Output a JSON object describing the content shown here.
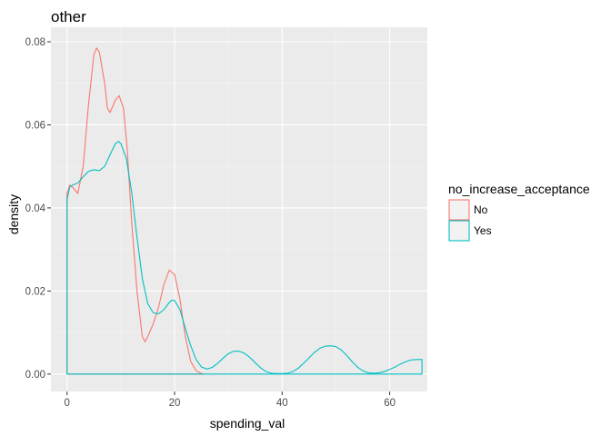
{
  "chart_data": {
    "type": "line",
    "subtype": "density",
    "title": "other",
    "xlabel": "spending_val",
    "ylabel": "density",
    "xlim": [
      -3,
      67
    ],
    "ylim": [
      -0.0042,
      0.0835
    ],
    "x_ticks": [
      0,
      20,
      40,
      60
    ],
    "x_tick_labels": [
      "0",
      "20",
      "40",
      "60"
    ],
    "y_ticks": [
      0,
      0.02,
      0.04,
      0.06,
      0.08
    ],
    "y_tick_labels": [
      "0.00",
      "0.02",
      "0.04",
      "0.06",
      "0.08"
    ],
    "grid": true,
    "background": "#ebebeb",
    "legend": {
      "title": "no_increase_acceptance",
      "position": "right",
      "entries": [
        "No",
        "Yes"
      ]
    },
    "series": [
      {
        "name": "No",
        "color": "#f8766d",
        "closed": true,
        "x": [
          0,
          0.5,
          1,
          2,
          3,
          4,
          5,
          5.5,
          6,
          7,
          7.5,
          8,
          9,
          9.7,
          10.5,
          11.2,
          12,
          13,
          14,
          14.5,
          15,
          16,
          17,
          18,
          19,
          20,
          21,
          22,
          23,
          24,
          25,
          25.5
        ],
        "y": [
          0.0435,
          0.0455,
          0.045,
          0.0435,
          0.05,
          0.065,
          0.077,
          0.0785,
          0.0775,
          0.07,
          0.064,
          0.063,
          0.066,
          0.067,
          0.064,
          0.054,
          0.037,
          0.02,
          0.009,
          0.0078,
          0.009,
          0.012,
          0.016,
          0.0215,
          0.025,
          0.024,
          0.018,
          0.009,
          0.003,
          0.0008,
          0.0001,
          0
        ]
      },
      {
        "name": "Yes",
        "color": "#00bfc4",
        "closed": true,
        "x": [
          0,
          0.5,
          1,
          2,
          3,
          4,
          5,
          6,
          7,
          8,
          9,
          9.6,
          10,
          11,
          12,
          13,
          14,
          15,
          16,
          17,
          18,
          19,
          19.5,
          20,
          21,
          22,
          23,
          24,
          25,
          26,
          27,
          28,
          29,
          30,
          31,
          32,
          33,
          34,
          35,
          36,
          37,
          38,
          39,
          40,
          41,
          42,
          43,
          44,
          45,
          46,
          47,
          48,
          49,
          50,
          51,
          52,
          53,
          54,
          55,
          56,
          57,
          58,
          59,
          60,
          61,
          62,
          63,
          64,
          65,
          66
        ],
        "y": [
          0.042,
          0.045,
          0.0455,
          0.046,
          0.0475,
          0.0488,
          0.0492,
          0.049,
          0.05,
          0.0528,
          0.0555,
          0.056,
          0.0555,
          0.052,
          0.044,
          0.033,
          0.023,
          0.017,
          0.0148,
          0.0145,
          0.0155,
          0.0172,
          0.0178,
          0.0177,
          0.0155,
          0.011,
          0.0068,
          0.0035,
          0.0017,
          0.0012,
          0.0016,
          0.0026,
          0.0038,
          0.0049,
          0.0055,
          0.0055,
          0.005,
          0.004,
          0.0027,
          0.0015,
          0.0006,
          0.0002,
          0.0001,
          0.0001,
          0.0002,
          0.0006,
          0.0014,
          0.0026,
          0.0039,
          0.0052,
          0.0062,
          0.0067,
          0.0068,
          0.0066,
          0.0058,
          0.0045,
          0.003,
          0.0017,
          0.0008,
          0.0003,
          0.0002,
          0.0003,
          0.0006,
          0.0011,
          0.0017,
          0.0024,
          0.003,
          0.0034,
          0.0035,
          0.0035
        ]
      }
    ]
  }
}
